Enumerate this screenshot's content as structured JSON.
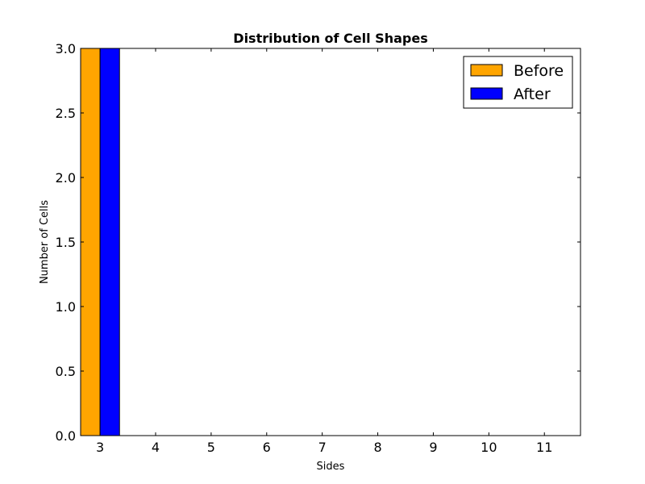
{
  "chart_data": {
    "type": "bar",
    "title": "Distribution of Cell Shapes",
    "xlabel": "Sides",
    "ylabel": "Number of Cells",
    "categories": [
      "3",
      "4",
      "5",
      "6",
      "7",
      "8",
      "9",
      "10",
      "11"
    ],
    "series": [
      {
        "name": "Before",
        "color": "#ffa500",
        "values": [
          3,
          0,
          0,
          0,
          0,
          0,
          0,
          0,
          0
        ]
      },
      {
        "name": "After",
        "color": "#0000ff",
        "values": [
          3,
          0,
          0,
          0,
          0,
          0,
          0,
          0,
          0
        ]
      }
    ],
    "ylim": [
      0,
      3
    ],
    "yticks": [
      "0.0",
      "0.5",
      "1.0",
      "1.5",
      "2.0",
      "2.5",
      "3.0"
    ],
    "grid": false,
    "legend_position": "top-right"
  }
}
